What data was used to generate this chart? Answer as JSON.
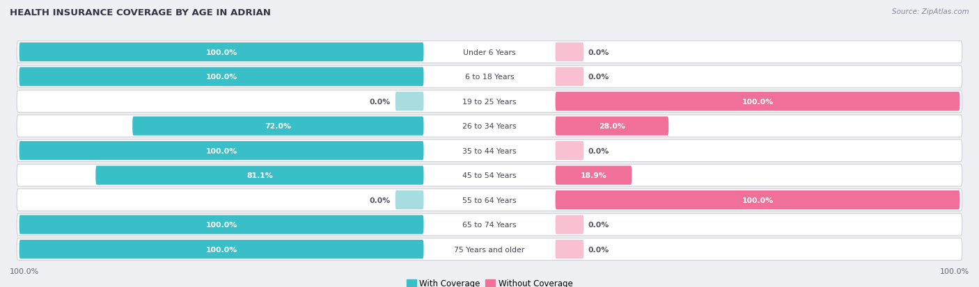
{
  "title": "HEALTH INSURANCE COVERAGE BY AGE IN ADRIAN",
  "source": "Source: ZipAtlas.com",
  "categories": [
    "Under 6 Years",
    "6 to 18 Years",
    "19 to 25 Years",
    "26 to 34 Years",
    "35 to 44 Years",
    "45 to 54 Years",
    "55 to 64 Years",
    "65 to 74 Years",
    "75 Years and older"
  ],
  "with_coverage": [
    100.0,
    100.0,
    0.0,
    72.0,
    100.0,
    81.1,
    0.0,
    100.0,
    100.0
  ],
  "without_coverage": [
    0.0,
    0.0,
    100.0,
    28.0,
    0.0,
    18.9,
    100.0,
    0.0,
    0.0
  ],
  "color_with": "#38bfc8",
  "color_without": "#f0709a",
  "color_with_light": "#a8dde0",
  "color_without_light": "#f8c0d0",
  "background_color": "#eef0f3",
  "row_bg_color": "#f5f5f8",
  "title_fontsize": 9.5,
  "label_fontsize": 7.8,
  "tick_fontsize": 8,
  "legend_fontsize": 8.5,
  "source_fontsize": 7.5
}
